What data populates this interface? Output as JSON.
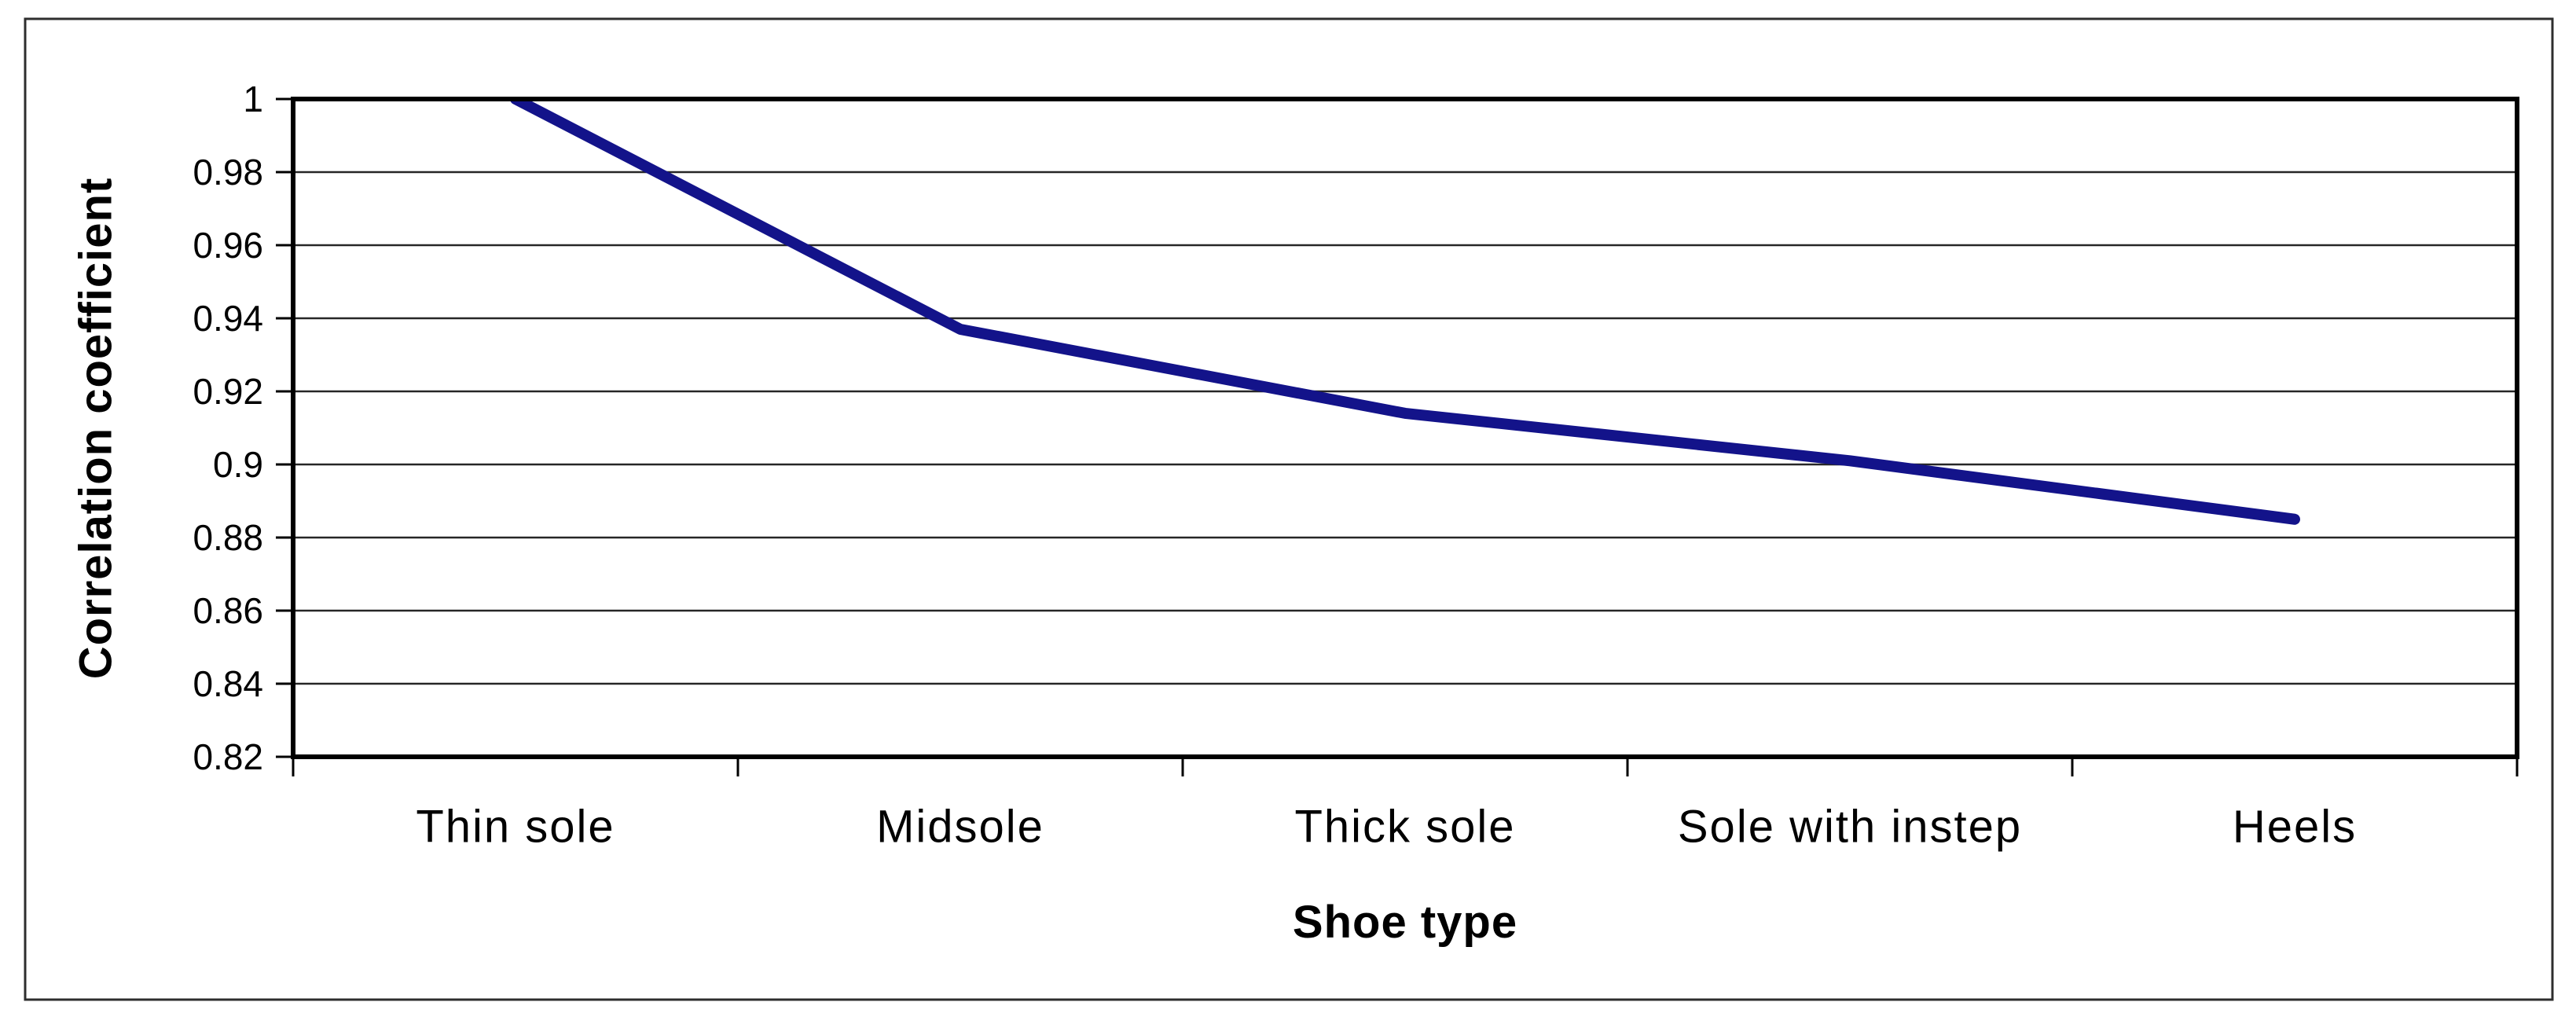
{
  "chart_data": {
    "type": "line",
    "xlabel": "Shoe type",
    "ylabel": "Correlation coefficient",
    "categories": [
      "Thin sole",
      "Midsole",
      "Thick sole",
      "Sole with instep",
      "Heels"
    ],
    "values": [
      1.0,
      0.937,
      0.914,
      0.901,
      0.885
    ],
    "ylim": [
      0.82,
      1.0
    ],
    "ytick_step": 0.02,
    "ytick_labels": [
      "1",
      "0.98",
      "0.96",
      "0.94",
      "0.92",
      "0.9",
      "0.88",
      "0.86",
      "0.84",
      "0.82"
    ],
    "grid": "horizontal",
    "legend": "none",
    "line_color": "#13138a",
    "axis_color": "#000000",
    "gridline_color": "#262626",
    "frame_color": "#2e2e2e"
  }
}
